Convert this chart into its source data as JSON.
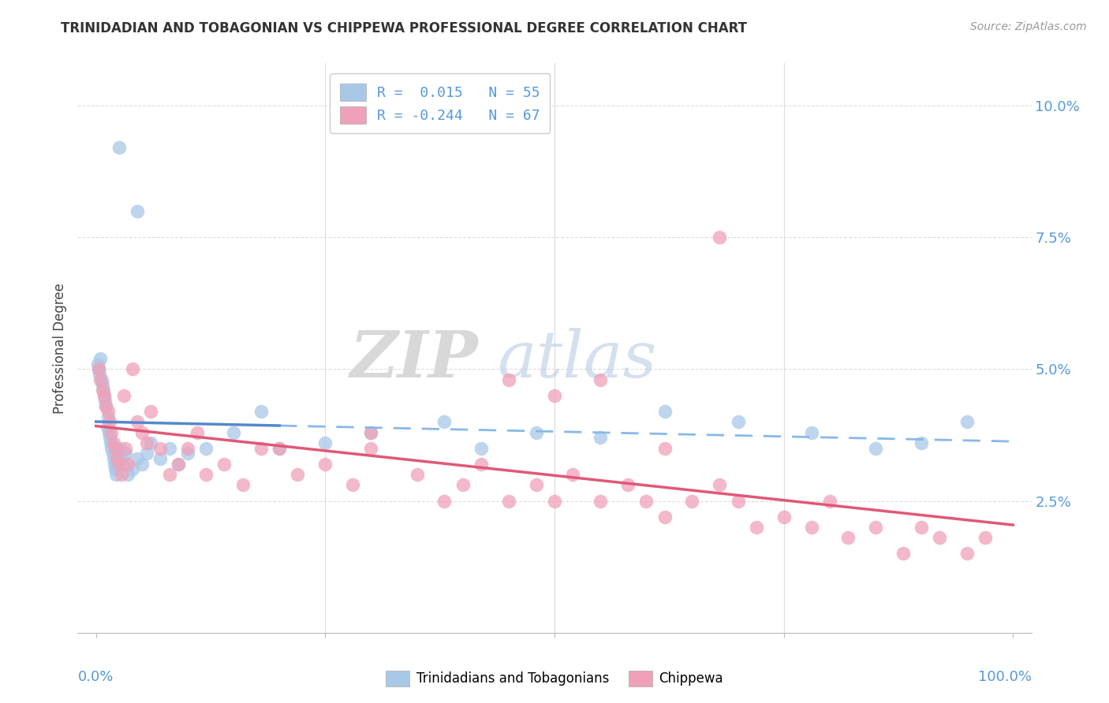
{
  "title": "TRINIDADIAN AND TOBAGONIAN VS CHIPPEWA PROFESSIONAL DEGREE CORRELATION CHART",
  "source": "Source: ZipAtlas.com",
  "ylabel": "Professional Degree",
  "legend1_label": "Trinidadians and Tobagonians",
  "legend2_label": "Chippewa",
  "r1": 0.015,
  "n1": 55,
  "r2": -0.244,
  "n2": 67,
  "color1": "#a8c8e8",
  "color2": "#f0a0b8",
  "line1_solid_color": "#5588cc",
  "line1_dash_color": "#88b8e8",
  "line2_color": "#e05878",
  "background_color": "#ffffff",
  "grid_color": "#dddddd",
  "tick_color": "#5599dd",
  "y_tick_vals": [
    2.5,
    5.0,
    7.5,
    10.0
  ],
  "y_tick_labels": [
    "2.5%",
    "5.0%",
    "7.5%",
    "10.0%"
  ],
  "xlim": [
    0,
    100
  ],
  "ylim": [
    0,
    10.5
  ],
  "scatter1_x": [
    2.5,
    4.5,
    0.2,
    0.3,
    0.4,
    0.5,
    0.6,
    0.7,
    0.8,
    0.9,
    1.0,
    1.1,
    1.2,
    1.3,
    1.4,
    1.5,
    1.6,
    1.7,
    1.8,
    1.9,
    2.0,
    2.1,
    2.2,
    2.3,
    2.4,
    2.6,
    2.8,
    3.0,
    3.2,
    3.5,
    4.0,
    4.5,
    5.0,
    5.5,
    6.0,
    7.0,
    8.0,
    9.0,
    10.0,
    12.0,
    15.0,
    18.0,
    20.0,
    25.0,
    30.0,
    38.0,
    42.0,
    48.0,
    55.0,
    62.0,
    70.0,
    78.0,
    85.0,
    90.0,
    95.0
  ],
  "scatter1_y": [
    9.2,
    8.0,
    5.1,
    5.0,
    4.9,
    5.2,
    4.8,
    4.7,
    4.6,
    4.5,
    4.4,
    4.3,
    3.9,
    4.1,
    3.8,
    3.7,
    3.6,
    3.5,
    3.4,
    3.3,
    3.2,
    3.1,
    3.0,
    3.2,
    3.4,
    3.5,
    3.3,
    3.2,
    3.4,
    3.0,
    3.1,
    3.3,
    3.2,
    3.4,
    3.6,
    3.3,
    3.5,
    3.2,
    3.4,
    3.5,
    3.8,
    4.2,
    3.5,
    3.6,
    3.8,
    4.0,
    3.5,
    3.8,
    3.7,
    4.2,
    4.0,
    3.8,
    3.5,
    3.6,
    4.0
  ],
  "scatter2_x": [
    0.3,
    0.5,
    0.7,
    0.9,
    1.1,
    1.3,
    1.5,
    1.7,
    1.9,
    2.1,
    2.3,
    2.5,
    2.8,
    3.0,
    3.2,
    3.5,
    4.0,
    4.5,
    5.0,
    5.5,
    6.0,
    7.0,
    8.0,
    9.0,
    10.0,
    11.0,
    12.0,
    14.0,
    16.0,
    18.0,
    20.0,
    22.0,
    25.0,
    28.0,
    30.0,
    35.0,
    38.0,
    40.0,
    42.0,
    45.0,
    48.0,
    50.0,
    52.0,
    55.0,
    58.0,
    60.0,
    62.0,
    65.0,
    68.0,
    70.0,
    72.0,
    75.0,
    78.0,
    80.0,
    82.0,
    85.0,
    88.0,
    90.0,
    92.0,
    95.0,
    97.0,
    68.0,
    30.0,
    45.0,
    50.0,
    55.0,
    62.0
  ],
  "scatter2_y": [
    5.0,
    4.8,
    4.6,
    4.5,
    4.3,
    4.2,
    4.0,
    3.8,
    3.6,
    3.5,
    3.3,
    3.2,
    3.0,
    4.5,
    3.5,
    3.2,
    5.0,
    4.0,
    3.8,
    3.6,
    4.2,
    3.5,
    3.0,
    3.2,
    3.5,
    3.8,
    3.0,
    3.2,
    2.8,
    3.5,
    3.5,
    3.0,
    3.2,
    2.8,
    3.5,
    3.0,
    2.5,
    2.8,
    3.2,
    2.5,
    2.8,
    2.5,
    3.0,
    2.5,
    2.8,
    2.5,
    2.2,
    2.5,
    2.8,
    2.5,
    2.0,
    2.2,
    2.0,
    2.5,
    1.8,
    2.0,
    1.5,
    2.0,
    1.8,
    1.5,
    1.8,
    7.5,
    3.8,
    4.8,
    4.5,
    4.8,
    3.5
  ]
}
